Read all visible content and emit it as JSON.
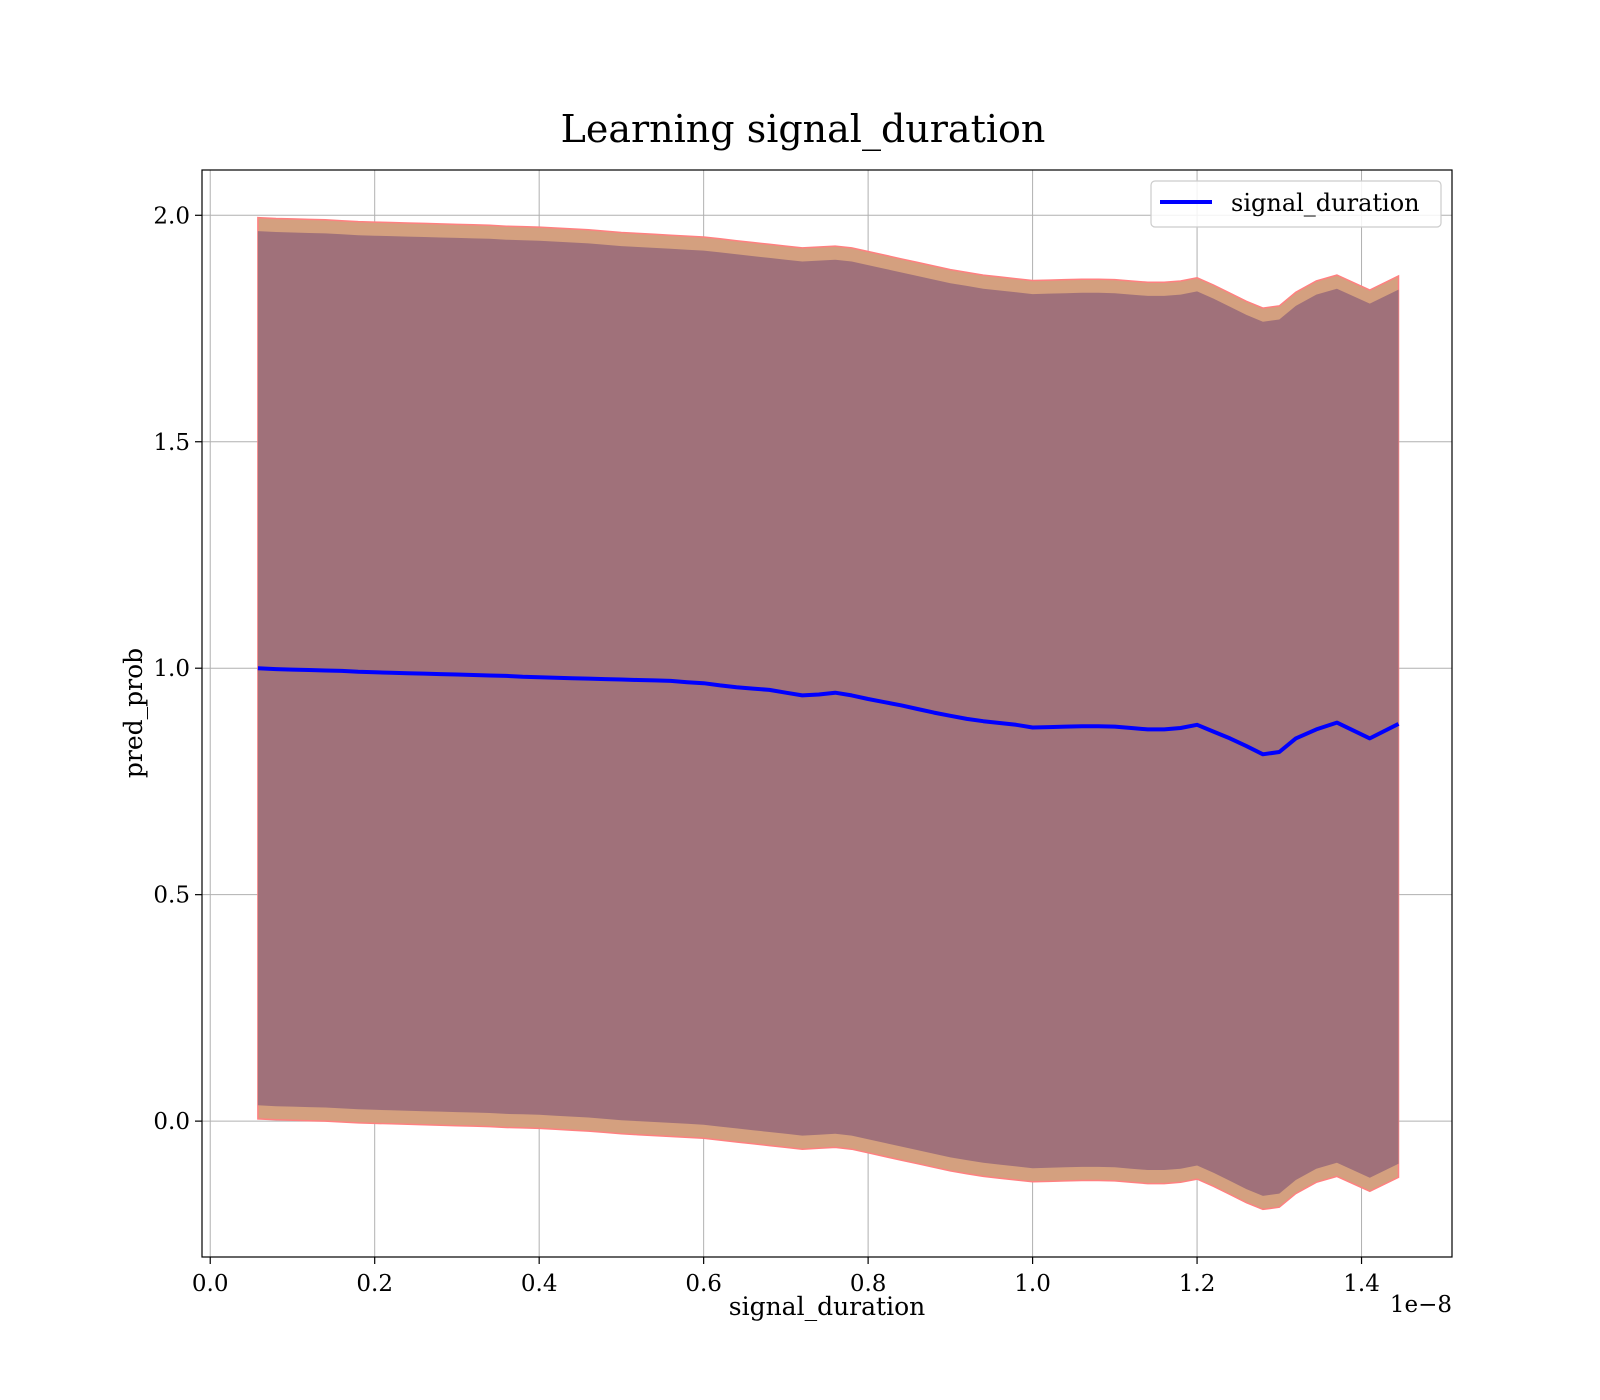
{
  "chart_data": {
    "type": "line",
    "title": "Learning signal_duration",
    "xlabel": "signal_duration",
    "ylabel": "pred_prob",
    "x_offset_label": "1e−8",
    "xlim": [
      -0.01,
      1.51
    ],
    "ylim": [
      -0.3,
      2.1
    ],
    "x_ticks": [
      0.0,
      0.2,
      0.4,
      0.6,
      0.8,
      1.0,
      1.2,
      1.4
    ],
    "x_tick_labels": [
      "0.0",
      "0.2",
      "0.4",
      "0.6",
      "0.8",
      "1.0",
      "1.2",
      "1.4"
    ],
    "y_ticks": [
      0.0,
      0.5,
      1.0,
      1.5,
      2.0
    ],
    "y_tick_labels": [
      "0.0",
      "0.5",
      "1.0",
      "1.5",
      "2.0"
    ],
    "grid": true,
    "legend_position": "top-right",
    "series": [
      {
        "name": "signal_duration",
        "color": "#0000ff",
        "x": [
          0.058,
          0.08,
          0.1,
          0.12,
          0.14,
          0.16,
          0.18,
          0.2,
          0.22,
          0.24,
          0.26,
          0.28,
          0.3,
          0.32,
          0.34,
          0.36,
          0.38,
          0.4,
          0.42,
          0.44,
          0.46,
          0.48,
          0.5,
          0.52,
          0.54,
          0.56,
          0.58,
          0.6,
          0.62,
          0.64,
          0.66,
          0.68,
          0.7,
          0.72,
          0.74,
          0.76,
          0.78,
          0.8,
          0.82,
          0.84,
          0.86,
          0.88,
          0.9,
          0.92,
          0.94,
          0.96,
          0.98,
          1.0,
          1.02,
          1.04,
          1.06,
          1.08,
          1.1,
          1.12,
          1.14,
          1.16,
          1.18,
          1.2,
          1.22,
          1.24,
          1.26,
          1.28,
          1.3,
          1.32,
          1.345,
          1.37,
          1.41,
          1.445
        ],
        "y": [
          1.0,
          0.998,
          0.997,
          0.996,
          0.995,
          0.994,
          0.992,
          0.991,
          0.99,
          0.989,
          0.988,
          0.987,
          0.986,
          0.985,
          0.984,
          0.983,
          0.981,
          0.98,
          0.979,
          0.978,
          0.977,
          0.976,
          0.975,
          0.974,
          0.973,
          0.972,
          0.969,
          0.967,
          0.962,
          0.958,
          0.955,
          0.952,
          0.946,
          0.94,
          0.942,
          0.946,
          0.94,
          0.932,
          0.925,
          0.918,
          0.91,
          0.902,
          0.895,
          0.888,
          0.883,
          0.879,
          0.875,
          0.869,
          0.87,
          0.871,
          0.872,
          0.872,
          0.871,
          0.868,
          0.865,
          0.865,
          0.868,
          0.875,
          0.86,
          0.845,
          0.828,
          0.81,
          0.815,
          0.845,
          0.865,
          0.88,
          0.845,
          0.877
        ],
        "band_outer_upper": [
          1.995,
          1.993,
          1.992,
          1.991,
          1.99,
          1.988,
          1.986,
          1.985,
          1.984,
          1.983,
          1.982,
          1.981,
          1.98,
          1.979,
          1.978,
          1.976,
          1.975,
          1.974,
          1.972,
          1.97,
          1.968,
          1.965,
          1.962,
          1.96,
          1.958,
          1.956,
          1.954,
          1.952,
          1.948,
          1.944,
          1.94,
          1.936,
          1.932,
          1.928,
          1.93,
          1.932,
          1.928,
          1.92,
          1.912,
          1.904,
          1.896,
          1.888,
          1.88,
          1.874,
          1.868,
          1.864,
          1.86,
          1.856,
          1.857,
          1.858,
          1.859,
          1.859,
          1.858,
          1.855,
          1.852,
          1.852,
          1.855,
          1.862,
          1.846,
          1.828,
          1.81,
          1.795,
          1.8,
          1.83,
          1.855,
          1.868,
          1.835,
          1.866
        ],
        "band_inner_upper": [
          1.965,
          1.963,
          1.962,
          1.961,
          1.96,
          1.958,
          1.956,
          1.955,
          1.954,
          1.953,
          1.952,
          1.951,
          1.95,
          1.949,
          1.948,
          1.946,
          1.945,
          1.944,
          1.942,
          1.94,
          1.938,
          1.935,
          1.932,
          1.93,
          1.928,
          1.926,
          1.924,
          1.922,
          1.918,
          1.914,
          1.91,
          1.906,
          1.902,
          1.898,
          1.9,
          1.902,
          1.898,
          1.89,
          1.882,
          1.874,
          1.866,
          1.858,
          1.85,
          1.844,
          1.838,
          1.834,
          1.83,
          1.826,
          1.827,
          1.828,
          1.829,
          1.829,
          1.828,
          1.825,
          1.822,
          1.822,
          1.825,
          1.832,
          1.816,
          1.798,
          1.78,
          1.765,
          1.77,
          1.8,
          1.825,
          1.838,
          1.805,
          1.836
        ],
        "band_inner_lower": [
          0.035,
          0.033,
          0.032,
          0.031,
          0.03,
          0.028,
          0.026,
          0.025,
          0.024,
          0.023,
          0.022,
          0.021,
          0.02,
          0.019,
          0.018,
          0.016,
          0.015,
          0.014,
          0.012,
          0.01,
          0.008,
          0.005,
          0.002,
          0.0,
          -0.002,
          -0.004,
          -0.006,
          -0.008,
          -0.012,
          -0.016,
          -0.02,
          -0.024,
          -0.028,
          -0.032,
          -0.03,
          -0.028,
          -0.032,
          -0.04,
          -0.048,
          -0.056,
          -0.064,
          -0.072,
          -0.08,
          -0.086,
          -0.092,
          -0.096,
          -0.1,
          -0.104,
          -0.103,
          -0.102,
          -0.101,
          -0.101,
          -0.102,
          -0.105,
          -0.108,
          -0.108,
          -0.105,
          -0.098,
          -0.114,
          -0.132,
          -0.15,
          -0.165,
          -0.16,
          -0.13,
          -0.105,
          -0.092,
          -0.125,
          -0.094
        ],
        "band_outer_lower": [
          0.005,
          0.003,
          0.002,
          0.001,
          0.0,
          -0.002,
          -0.004,
          -0.005,
          -0.006,
          -0.007,
          -0.008,
          -0.009,
          -0.01,
          -0.011,
          -0.012,
          -0.014,
          -0.015,
          -0.016,
          -0.018,
          -0.02,
          -0.022,
          -0.025,
          -0.028,
          -0.03,
          -0.032,
          -0.034,
          -0.036,
          -0.038,
          -0.042,
          -0.046,
          -0.05,
          -0.054,
          -0.058,
          -0.062,
          -0.06,
          -0.058,
          -0.062,
          -0.07,
          -0.078,
          -0.086,
          -0.094,
          -0.102,
          -0.11,
          -0.116,
          -0.122,
          -0.126,
          -0.13,
          -0.134,
          -0.133,
          -0.132,
          -0.131,
          -0.131,
          -0.132,
          -0.135,
          -0.138,
          -0.138,
          -0.135,
          -0.128,
          -0.144,
          -0.162,
          -0.18,
          -0.195,
          -0.19,
          -0.16,
          -0.135,
          -0.122,
          -0.155,
          -0.124
        ]
      }
    ],
    "band_colors": {
      "outer": "#d4a07f",
      "outer_edge": "#ff8080",
      "inner": "#a0717a"
    }
  }
}
